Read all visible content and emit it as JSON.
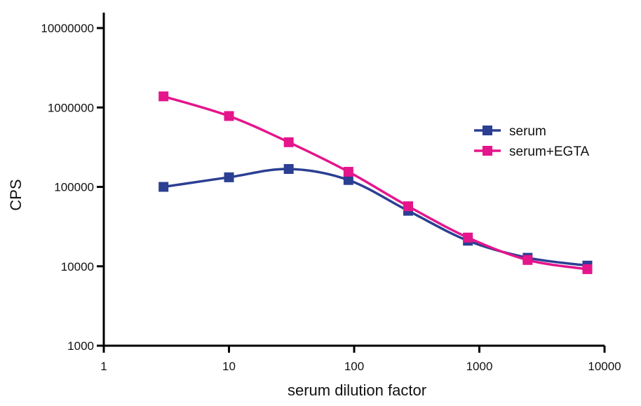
{
  "chart_data": {
    "type": "line",
    "xlabel": "serum dilution factor",
    "ylabel": "CPS",
    "x_scale": "log",
    "y_scale": "log",
    "xlim": [
      1,
      10000
    ],
    "ylim": [
      1000,
      10000000
    ],
    "x_ticks": [
      {
        "value": 1,
        "label": "1"
      },
      {
        "value": 10,
        "label": "10"
      },
      {
        "value": 100,
        "label": "100"
      },
      {
        "value": 1000,
        "label": "1000"
      },
      {
        "value": 10000,
        "label": "10000"
      }
    ],
    "y_ticks": [
      {
        "value": 1000,
        "label": "1000"
      },
      {
        "value": 10000,
        "label": "10000"
      },
      {
        "value": 100000,
        "label": "100000"
      },
      {
        "value": 1000000,
        "label": "1000000"
      },
      {
        "value": 10000000,
        "label": "10000000"
      }
    ],
    "grid": false,
    "legend_position": "right",
    "series": [
      {
        "name": "serum",
        "color": "#2b3f93",
        "marker": "square",
        "x": [
          3,
          10,
          30,
          90,
          270,
          810,
          2430,
          7290
        ],
        "y": [
          100000,
          132000,
          168000,
          122000,
          50000,
          21000,
          12800,
          10200
        ]
      },
      {
        "name": "serum+EGTA",
        "color": "#e5158c",
        "marker": "square",
        "x": [
          3,
          10,
          30,
          90,
          270,
          810,
          2430,
          7290
        ],
        "y": [
          1380000,
          780000,
          365000,
          155000,
          57000,
          23000,
          12000,
          9200
        ]
      }
    ]
  }
}
